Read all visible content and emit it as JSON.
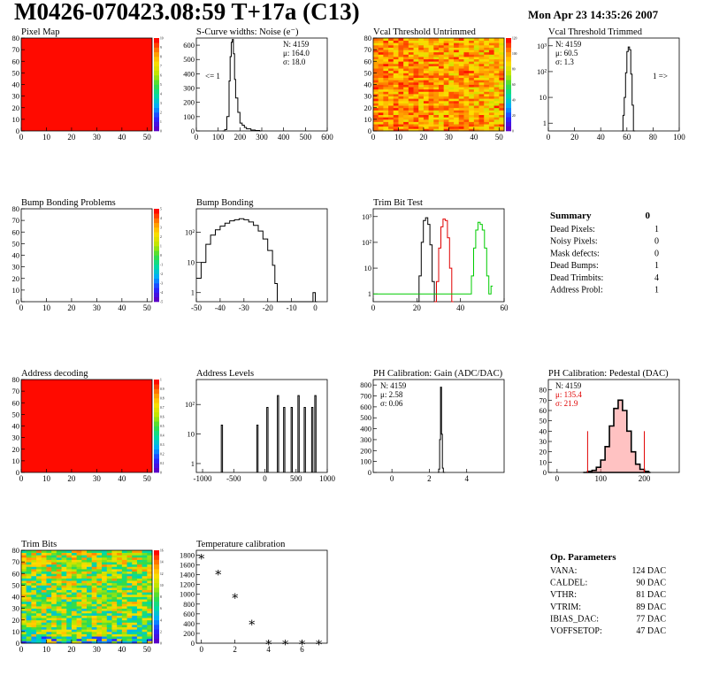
{
  "header": {
    "title": "M0426-070423.08:59 T+17a (C13)",
    "date": "Mon Apr 23 14:35:26 2007"
  },
  "colors": {
    "hist_line": "#000000",
    "trim_red": "#e00000",
    "trim_green": "#00cc00",
    "pedestal_red": "#e00000",
    "fill_red": "#ff0000"
  },
  "chart_data": [
    {
      "id": "pixel-map",
      "type": "heatmap",
      "title": "Pixel Map",
      "xticks": [
        0,
        10,
        20,
        30,
        40,
        50
      ],
      "yticks": [
        0,
        10,
        20,
        30,
        40,
        50,
        60,
        70,
        80
      ],
      "xlim": [
        0,
        52
      ],
      "ylim": [
        0,
        80
      ],
      "fill": "uniform-max",
      "zticks": [
        0,
        1,
        2,
        3,
        4,
        5,
        6,
        7,
        8,
        9,
        10
      ]
    },
    {
      "id": "scurve-noise",
      "type": "histogram",
      "title": "S-Curve widths: Noise (e⁻)",
      "xlim": [
        0,
        600
      ],
      "ylim": [
        0,
        650
      ],
      "ylog": false,
      "xticks": [
        0,
        100,
        200,
        300,
        400,
        500,
        600
      ],
      "yticks": [
        0,
        100,
        200,
        300,
        400,
        500,
        600
      ],
      "stats": [
        "N: 4159",
        "μ: 164.0",
        "σ: 18.0"
      ],
      "annotation": "<= 1",
      "bins": [
        [
          120,
          0
        ],
        [
          130,
          10
        ],
        [
          140,
          100
        ],
        [
          150,
          350
        ],
        [
          155,
          520
        ],
        [
          160,
          620
        ],
        [
          165,
          640
        ],
        [
          170,
          540
        ],
        [
          175,
          360
        ],
        [
          180,
          230
        ],
        [
          190,
          130
        ],
        [
          200,
          55
        ],
        [
          210,
          40
        ],
        [
          220,
          25
        ],
        [
          230,
          15
        ],
        [
          250,
          6
        ],
        [
          270,
          3
        ],
        [
          290,
          0
        ]
      ]
    },
    {
      "id": "vcal-untrimmed",
      "type": "heatmap",
      "title": "Vcal Threshold Untrimmed",
      "xticks": [
        0,
        10,
        20,
        30,
        40,
        50
      ],
      "yticks": [
        0,
        10,
        20,
        30,
        40,
        50,
        60,
        70,
        80
      ],
      "xlim": [
        0,
        52
      ],
      "ylim": [
        0,
        80
      ],
      "fill": "noisy-high",
      "zticks": [
        0,
        20,
        40,
        60,
        80,
        100,
        120
      ]
    },
    {
      "id": "vcal-trimmed",
      "type": "histogram",
      "title": "Vcal Threshold Trimmed",
      "xlim": [
        0,
        100
      ],
      "ylim": [
        0.5,
        2000
      ],
      "ylog": true,
      "xticks": [
        0,
        20,
        40,
        60,
        80,
        100
      ],
      "ylogticks": [
        "1",
        "10",
        "10²",
        "10³"
      ],
      "stats": [
        "N: 4159",
        "μ: 60.5",
        "σ:  1.3"
      ],
      "annotation": "1 =>",
      "bins": [
        [
          56,
          0.5
        ],
        [
          57,
          2
        ],
        [
          58,
          10
        ],
        [
          59,
          90
        ],
        [
          60,
          600
        ],
        [
          61,
          900
        ],
        [
          62,
          700
        ],
        [
          63,
          80
        ],
        [
          64,
          5
        ],
        [
          65,
          0.5
        ]
      ]
    },
    {
      "id": "bump-problems",
      "type": "heatmap",
      "title": "Bump Bonding Problems",
      "xticks": [
        0,
        10,
        20,
        30,
        40,
        50
      ],
      "yticks": [
        0,
        10,
        20,
        30,
        40,
        50,
        60,
        70,
        80
      ],
      "xlim": [
        0,
        52
      ],
      "ylim": [
        0,
        80
      ],
      "fill": "empty",
      "zticks": [
        -5,
        -4,
        -3,
        -2,
        -1,
        0,
        1,
        2,
        3,
        4,
        5
      ]
    },
    {
      "id": "bump-bonding",
      "type": "histogram",
      "title": "Bump Bonding",
      "xlim": [
        -50,
        5
      ],
      "ylim": [
        0.5,
        600
      ],
      "ylog": true,
      "xticks": [
        -50,
        -40,
        -30,
        -20,
        -10,
        0
      ],
      "ylogticks": [
        "1",
        "10",
        "10²"
      ],
      "bins": [
        [
          -50,
          3
        ],
        [
          -48,
          10
        ],
        [
          -46,
          40
        ],
        [
          -44,
          80
        ],
        [
          -42,
          120
        ],
        [
          -40,
          160
        ],
        [
          -38,
          200
        ],
        [
          -36,
          240
        ],
        [
          -34,
          260
        ],
        [
          -32,
          280
        ],
        [
          -30,
          260
        ],
        [
          -28,
          220
        ],
        [
          -26,
          170
        ],
        [
          -24,
          110
        ],
        [
          -22,
          60
        ],
        [
          -20,
          25
        ],
        [
          -18,
          8
        ],
        [
          -17,
          2
        ],
        [
          -16,
          0.5
        ],
        [
          -1,
          1
        ],
        [
          0,
          0.5
        ]
      ]
    },
    {
      "id": "trim-bit-test",
      "type": "histogram",
      "title": "Trim Bit Test",
      "xlim": [
        0,
        60
      ],
      "ylim": [
        0.5,
        2000
      ],
      "ylog": true,
      "xticks": [
        0,
        20,
        40,
        60
      ],
      "ylogticks": [
        "1",
        "10",
        "10²",
        "10³"
      ],
      "series": [
        {
          "color": "#000000",
          "bins": [
            [
              20,
              0.5
            ],
            [
              21,
              5
            ],
            [
              22,
              100
            ],
            [
              23,
              700
            ],
            [
              24,
              900
            ],
            [
              25,
              500
            ],
            [
              26,
              80
            ],
            [
              27,
              3
            ],
            [
              28,
              0.5
            ]
          ]
        },
        {
          "color": "#e00000",
          "bins": [
            [
              28,
              0.5
            ],
            [
              29,
              3
            ],
            [
              30,
              60
            ],
            [
              31,
              400
            ],
            [
              32,
              800
            ],
            [
              33,
              700
            ],
            [
              34,
              150
            ],
            [
              35,
              10
            ],
            [
              36,
              0.5
            ]
          ]
        },
        {
          "color": "#00cc00",
          "bins": [
            [
              0,
              1
            ],
            [
              44,
              1
            ],
            [
              45,
              5
            ],
            [
              46,
              60
            ],
            [
              47,
              300
            ],
            [
              48,
              600
            ],
            [
              49,
              500
            ],
            [
              50,
              300
            ],
            [
              51,
              60
            ],
            [
              52,
              5
            ],
            [
              53,
              1
            ],
            [
              54,
              2
            ]
          ]
        }
      ]
    },
    {
      "id": "address-decoding",
      "type": "heatmap",
      "title": "Address decoding",
      "xticks": [
        0,
        10,
        20,
        30,
        40,
        50
      ],
      "yticks": [
        0,
        10,
        20,
        30,
        40,
        50,
        60,
        70,
        80
      ],
      "xlim": [
        0,
        52
      ],
      "ylim": [
        0,
        80
      ],
      "fill": "uniform-max",
      "zticks": [
        0,
        0.1,
        0.2,
        0.3,
        0.4,
        0.5,
        0.6,
        0.7,
        0.8,
        0.9,
        1
      ]
    },
    {
      "id": "address-levels",
      "type": "histogram",
      "title": "Address Levels",
      "xlim": [
        -1100,
        1000
      ],
      "ylim": [
        0.5,
        700
      ],
      "ylog": true,
      "xticks": [
        -1000,
        -500,
        0,
        500,
        1000
      ],
      "ylogticks": [
        "1",
        "10",
        "10²"
      ],
      "peaks": [
        -700,
        -130,
        30,
        200,
        300,
        420,
        530,
        630,
        750,
        800
      ]
    },
    {
      "id": "ph-gain",
      "type": "histogram",
      "title": "PH Calibration: Gain (ADC/DAC)",
      "xlim": [
        -1,
        6
      ],
      "ylim": [
        0,
        850
      ],
      "ylog": false,
      "xticks": [
        0,
        2,
        4
      ],
      "yticks": [
        0,
        100,
        200,
        300,
        400,
        500,
        600,
        700,
        800
      ],
      "stats": [
        "N: 4159",
        "μ: 2.58",
        "σ: 0.06"
      ],
      "bins": [
        [
          2.45,
          0
        ],
        [
          2.5,
          30
        ],
        [
          2.55,
          300
        ],
        [
          2.6,
          780
        ],
        [
          2.65,
          350
        ],
        [
          2.7,
          40
        ],
        [
          2.75,
          0
        ]
      ]
    },
    {
      "id": "ph-pedestal",
      "type": "histogram",
      "title": "PH Calibration: Pedestal (DAC)",
      "xlim": [
        -20,
        280
      ],
      "ylim": [
        0,
        90
      ],
      "ylog": false,
      "xticks": [
        0,
        100,
        200
      ],
      "yticks": [
        0,
        10,
        20,
        30,
        40,
        50,
        60,
        70,
        80
      ],
      "stats": [
        "N: 4159",
        "μ: 135.4",
        "σ: 21.9"
      ],
      "cut_lines": [
        70,
        200
      ],
      "bins": [
        [
          60,
          0
        ],
        [
          70,
          1
        ],
        [
          80,
          2
        ],
        [
          90,
          5
        ],
        [
          100,
          12
        ],
        [
          110,
          25
        ],
        [
          120,
          45
        ],
        [
          130,
          62
        ],
        [
          140,
          70
        ],
        [
          150,
          60
        ],
        [
          160,
          40
        ],
        [
          170,
          20
        ],
        [
          180,
          8
        ],
        [
          190,
          3
        ],
        [
          200,
          1
        ],
        [
          210,
          0
        ]
      ]
    },
    {
      "id": "trim-bits",
      "type": "heatmap",
      "title": "Trim Bits",
      "xticks": [
        0,
        10,
        20,
        30,
        40,
        50
      ],
      "yticks": [
        0,
        10,
        20,
        30,
        40,
        50,
        60,
        70,
        80
      ],
      "xlim": [
        0,
        52
      ],
      "ylim": [
        0,
        80
      ],
      "fill": "noisy-mid",
      "zticks": [
        0,
        2,
        4,
        6,
        8,
        10,
        12,
        14,
        16
      ]
    },
    {
      "id": "temp-calibration",
      "type": "scatter",
      "title": "Temperature calibration",
      "xlim": [
        -0.3,
        7.5
      ],
      "ylim": [
        0,
        1900
      ],
      "ylog": false,
      "xticks": [
        0,
        2,
        4,
        6
      ],
      "yticks": [
        0,
        200,
        400,
        600,
        800,
        1000,
        1200,
        1400,
        1600,
        1800
      ],
      "x": [
        0,
        1,
        2,
        3,
        4,
        5,
        6,
        7
      ],
      "y": [
        1780,
        1460,
        980,
        430,
        30,
        30,
        30,
        30
      ]
    }
  ],
  "summary": {
    "title": "Summary",
    "total": "0",
    "rows": [
      {
        "label": "Dead Pixels:",
        "value": "1"
      },
      {
        "label": "Noisy Pixels:",
        "value": "0"
      },
      {
        "label": "Mask defects:",
        "value": "0"
      },
      {
        "label": "Dead Bumps:",
        "value": "1"
      },
      {
        "label": "Dead Trimbits:",
        "value": "4"
      },
      {
        "label": "Address Probl:",
        "value": "1"
      }
    ]
  },
  "op_params": {
    "title": "Op. Parameters",
    "rows": [
      {
        "label": "VANA:",
        "value": "124 DAC"
      },
      {
        "label": "CALDEL:",
        "value": "90 DAC"
      },
      {
        "label": "VTHR:",
        "value": "81 DAC"
      },
      {
        "label": "VTRIM:",
        "value": "89 DAC"
      },
      {
        "label": "IBIAS_DAC:",
        "value": "77 DAC"
      },
      {
        "label": "VOFFSETOP:",
        "value": "47 DAC"
      }
    ]
  }
}
